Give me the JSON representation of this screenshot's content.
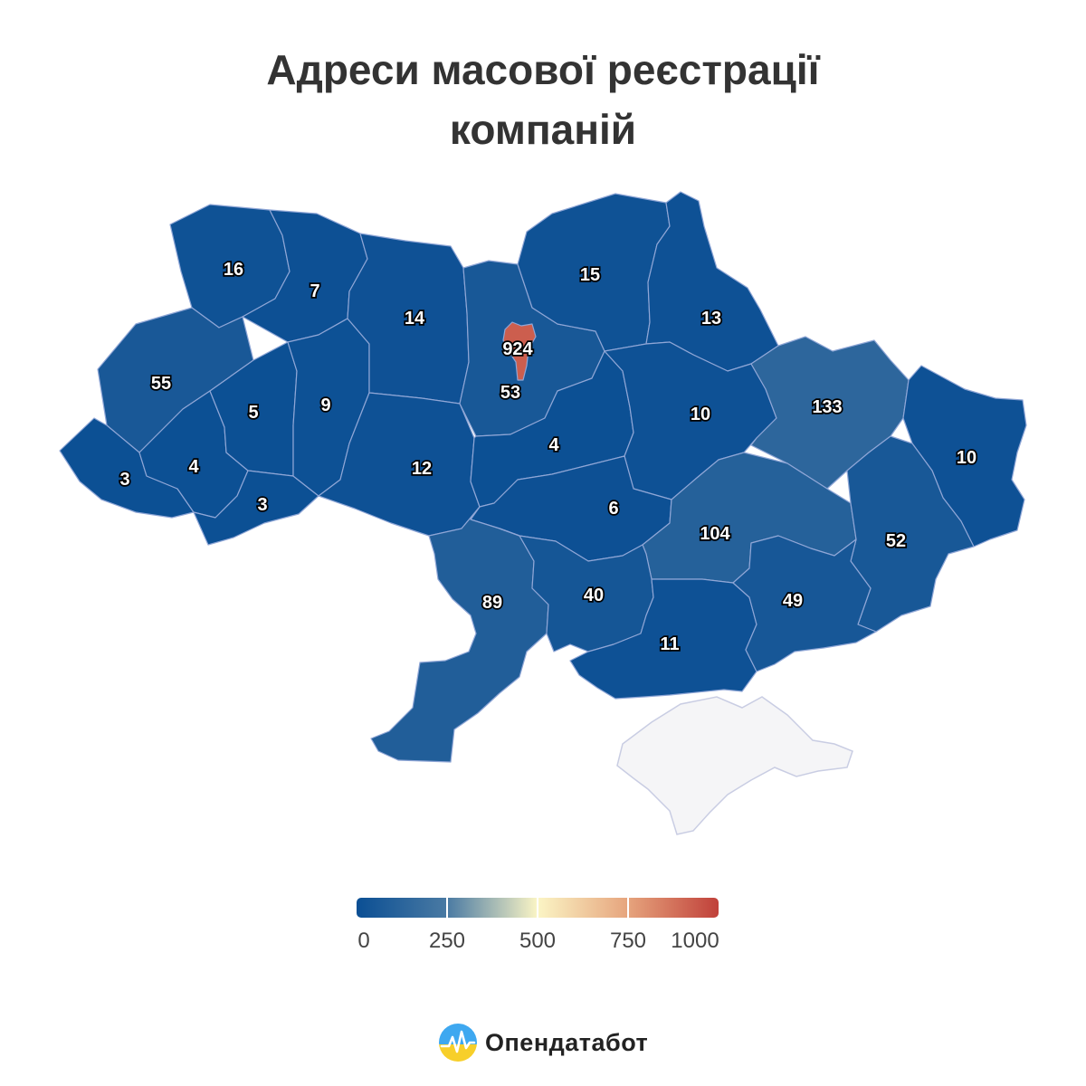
{
  "title": {
    "line1": "Адреси масової реєстрації",
    "line2": "компаній"
  },
  "color_scale": {
    "min": 0,
    "max": 1000,
    "stops": [
      "#0b4f94",
      "#4a7aa3",
      "#fbf5c5",
      "#e6a47d",
      "#c0403a"
    ],
    "ticks": [
      "0",
      "250",
      "500",
      "750",
      "1000"
    ],
    "no_data_color": "#f5f5f7"
  },
  "regions": [
    {
      "name": "volyn",
      "value": 16
    },
    {
      "name": "rivne",
      "value": 7
    },
    {
      "name": "zhytomyr",
      "value": 14
    },
    {
      "name": "kyiv-oblast",
      "value": 53
    },
    {
      "name": "kyiv-city",
      "value": 924
    },
    {
      "name": "chernihiv",
      "value": 15
    },
    {
      "name": "sumy",
      "value": 13
    },
    {
      "name": "lviv",
      "value": 55
    },
    {
      "name": "ternopil",
      "value": 5
    },
    {
      "name": "khmelnytskyi",
      "value": 9
    },
    {
      "name": "zakarpattia",
      "value": 3
    },
    {
      "name": "ivano-frankivsk",
      "value": 4
    },
    {
      "name": "chernivtsi",
      "value": 3
    },
    {
      "name": "vinnytsia",
      "value": 12
    },
    {
      "name": "cherkasy",
      "value": 4
    },
    {
      "name": "poltava",
      "value": 10
    },
    {
      "name": "kharkiv",
      "value": 133
    },
    {
      "name": "luhansk",
      "value": 10
    },
    {
      "name": "kirovohrad",
      "value": 6
    },
    {
      "name": "dnipropetrovsk",
      "value": 104
    },
    {
      "name": "donetsk",
      "value": 52
    },
    {
      "name": "odesa",
      "value": 89
    },
    {
      "name": "mykolaiv",
      "value": 40
    },
    {
      "name": "kherson",
      "value": 11
    },
    {
      "name": "zaporizhzhia",
      "value": 49
    }
  ],
  "brand": {
    "name": "Опендатабот",
    "icon": "opendatabot-logo-icon"
  }
}
